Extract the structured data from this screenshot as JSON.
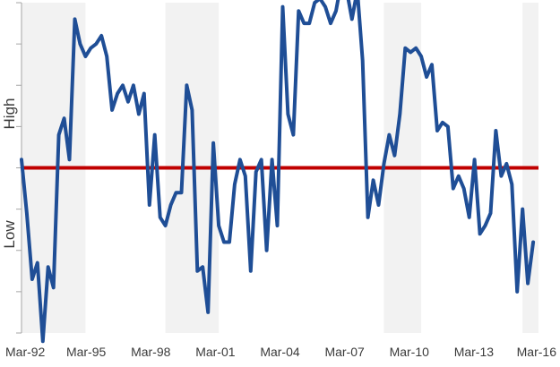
{
  "chart_data": {
    "type": "line",
    "title": "",
    "xlabel": "",
    "ylabel_top": "High",
    "ylabel_bottom": "Low",
    "x_ticks": [
      "Mar-92",
      "Mar-95",
      "Mar-98",
      "Mar-01",
      "Mar-04",
      "Mar-07",
      "Mar-10",
      "Mar-13",
      "Mar-16"
    ],
    "x_range": [
      1992.0,
      2016.25
    ],
    "ylim": [
      -4,
      4
    ],
    "y_tick_values": [
      -4,
      -3,
      -2,
      -1,
      0,
      1,
      2,
      3,
      4
    ],
    "reference_line": {
      "value": 0,
      "color": "#c00000"
    },
    "series_color": "#1f4e96",
    "shaded_color": "#f2f2f2",
    "shaded_periods": [
      [
        1992.0,
        1995.0
      ],
      [
        1998.75,
        2001.25
      ],
      [
        2009.0,
        2010.75
      ],
      [
        2015.5,
        2016.25
      ]
    ],
    "series": [
      {
        "x": [
          1992.0,
          1992.25,
          1992.5,
          1992.75,
          1993.0,
          1993.25,
          1993.5,
          1993.75,
          1994.0,
          1994.25,
          1994.5,
          1994.75,
          1995.0,
          1995.25,
          1995.5,
          1995.75,
          1996.0,
          1996.25,
          1996.5,
          1996.75,
          1997.0,
          1997.25,
          1997.5,
          1997.75,
          1998.0,
          1998.25,
          1998.5,
          1998.75,
          1999.0,
          1999.25,
          1999.5,
          1999.75,
          2000.0,
          2000.25,
          2000.5,
          2000.75,
          2001.0,
          2001.25,
          2001.5,
          2001.75,
          2002.0,
          2002.25,
          2002.5,
          2002.75,
          2003.0,
          2003.25,
          2003.5,
          2003.75,
          2004.0,
          2004.25,
          2004.5,
          2004.75,
          2005.0,
          2005.25,
          2005.5,
          2005.75,
          2006.0,
          2006.25,
          2006.5,
          2006.75,
          2007.0,
          2007.25,
          2007.5,
          2007.75,
          2008.0,
          2008.25,
          2008.5,
          2008.75,
          2009.0,
          2009.25,
          2009.5,
          2009.75,
          2010.0,
          2010.25,
          2010.5,
          2010.75,
          2011.0,
          2011.25,
          2011.5,
          2011.75,
          2012.0,
          2012.25,
          2012.5,
          2012.75,
          2013.0,
          2013.25,
          2013.5,
          2013.75,
          2014.0,
          2014.25,
          2014.5,
          2014.75,
          2015.0,
          2015.25,
          2015.5,
          2015.75,
          2016.0
        ],
        "values": [
          0.2,
          -1.1,
          -2.7,
          -2.3,
          -4.2,
          -2.4,
          -2.9,
          0.8,
          1.2,
          0.2,
          3.6,
          3.0,
          2.7,
          2.9,
          3.0,
          3.2,
          2.7,
          1.4,
          1.8,
          2.0,
          1.6,
          2.0,
          1.3,
          1.8,
          -0.9,
          0.8,
          -1.2,
          -1.4,
          -0.9,
          -0.6,
          -0.6,
          2.0,
          1.4,
          -2.5,
          -2.4,
          -3.5,
          0.6,
          -1.4,
          -1.8,
          -1.8,
          -0.4,
          0.2,
          -0.2,
          -2.5,
          -0.1,
          0.2,
          -2.0,
          0.2,
          -1.4,
          3.9,
          1.3,
          0.8,
          3.8,
          3.5,
          3.5,
          4.0,
          4.1,
          3.9,
          3.5,
          3.8,
          4.5,
          4.3,
          3.6,
          4.3,
          2.6,
          -1.2,
          -0.3,
          -0.9,
          0.1,
          0.8,
          0.3,
          1.3,
          2.9,
          2.8,
          2.9,
          2.7,
          2.2,
          2.5,
          0.9,
          1.1,
          1.0,
          -0.5,
          -0.2,
          -0.5,
          -1.2,
          0.2,
          -1.6,
          -1.4,
          -1.1,
          0.9,
          -0.2,
          0.1,
          -0.4,
          -3.0,
          -1.0,
          -2.8,
          -1.8
        ]
      }
    ]
  }
}
